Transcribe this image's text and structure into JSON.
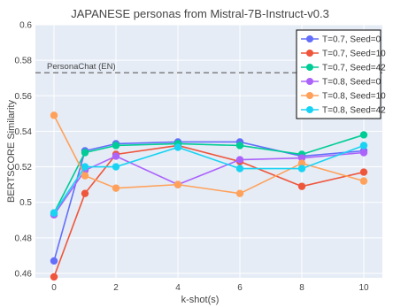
{
  "chart_data": {
    "type": "line",
    "title": "JAPANESE personas from Mistral-7B-Instruct-v0.3",
    "xlabel": "k-shot(s)",
    "ylabel": "BERTSCORE Similarity",
    "x": [
      0,
      1,
      2,
      4,
      6,
      8,
      10
    ],
    "x_ticks": [
      "0",
      "2",
      "4",
      "6",
      "8",
      "10"
    ],
    "y_ticks": [
      "0.46",
      "0.48",
      "0.5",
      "0.52",
      "0.54",
      "0.56",
      "0.58",
      "0.6"
    ],
    "xlim": [
      -0.6,
      10.6
    ],
    "ylim": [
      0.4575,
      0.6
    ],
    "grid": true,
    "legend_position": "top-right",
    "reference_line": {
      "label": "PersonaChat (EN)",
      "value": 0.573,
      "color": "#808080"
    },
    "series": [
      {
        "name": "T=0.7, Seed=0",
        "color": "#636efa",
        "values": [
          0.467,
          0.529,
          0.533,
          0.534,
          0.534,
          0.526,
          0.529
        ]
      },
      {
        "name": "T=0.7, Seed=10",
        "color": "#ef553b",
        "values": [
          0.458,
          0.505,
          0.527,
          0.532,
          0.523,
          0.509,
          0.517
        ]
      },
      {
        "name": "T=0.7, Seed=42",
        "color": "#00cc96",
        "values": [
          0.494,
          0.528,
          0.532,
          0.533,
          0.532,
          0.527,
          0.538
        ]
      },
      {
        "name": "T=0.8, Seed=0",
        "color": "#ab63fa",
        "values": [
          0.493,
          0.518,
          0.526,
          0.51,
          0.524,
          0.525,
          0.528
        ]
      },
      {
        "name": "T=0.8, Seed=10",
        "color": "#ffa15a",
        "values": [
          0.549,
          0.515,
          0.508,
          0.51,
          0.505,
          0.522,
          0.512
        ]
      },
      {
        "name": "T=0.8, Seed=42",
        "color": "#19d3f3",
        "values": [
          0.494,
          0.52,
          0.52,
          0.531,
          0.519,
          0.519,
          0.532
        ]
      }
    ]
  }
}
